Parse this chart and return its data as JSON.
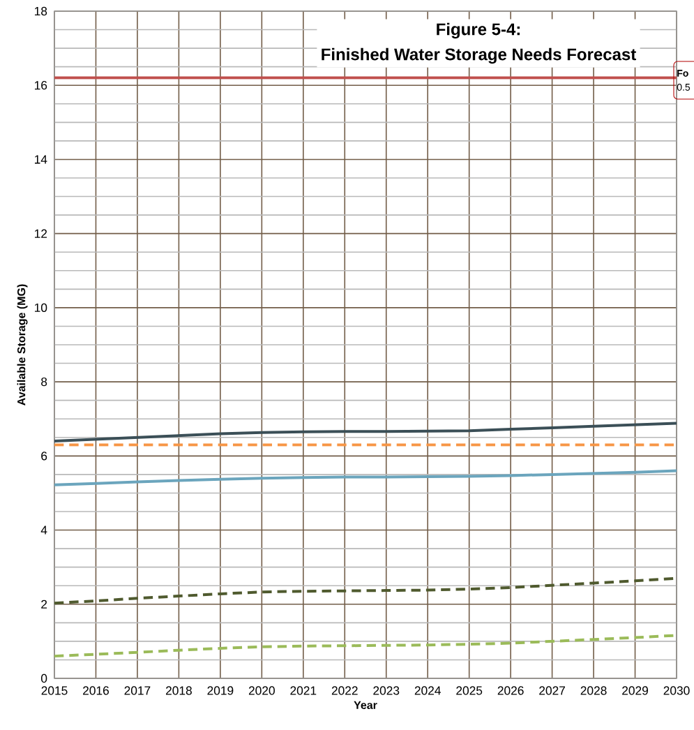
{
  "chart_data": {
    "type": "line",
    "title": "Figure 5-4:",
    "subtitle": "Finished Water Storage Needs Forecast",
    "xlabel": "Year",
    "ylabel": "Available Storage (MG)",
    "x": [
      2015,
      2016,
      2017,
      2018,
      2019,
      2020,
      2021,
      2022,
      2023,
      2024,
      2025,
      2026,
      2027,
      2028,
      2029,
      2030
    ],
    "series": [
      {
        "color": "#c0504d",
        "line_style": "solid",
        "values": [
          16.2,
          16.2,
          16.2,
          16.2,
          16.2,
          16.2,
          16.2,
          16.2,
          16.2,
          16.2,
          16.2,
          16.2,
          16.2,
          16.2,
          16.2,
          16.2
        ]
      },
      {
        "color": "#3b4f57",
        "line_style": "solid",
        "values": [
          6.4,
          6.45,
          6.5,
          6.55,
          6.6,
          6.63,
          6.65,
          6.66,
          6.66,
          6.67,
          6.68,
          6.72,
          6.76,
          6.8,
          6.84,
          6.88
        ]
      },
      {
        "color": "#f79646",
        "line_style": "dashed",
        "values": [
          6.3,
          6.3,
          6.3,
          6.3,
          6.3,
          6.3,
          6.3,
          6.3,
          6.3,
          6.3,
          6.3,
          6.3,
          6.3,
          6.3,
          6.3,
          6.3
        ]
      },
      {
        "color": "#6ba5bd",
        "line_style": "solid",
        "values": [
          5.22,
          5.26,
          5.3,
          5.34,
          5.37,
          5.4,
          5.42,
          5.43,
          5.43,
          5.44,
          5.45,
          5.47,
          5.5,
          5.53,
          5.56,
          5.6
        ]
      },
      {
        "color": "#4f5a2e",
        "line_style": "dashed",
        "values": [
          2.03,
          2.09,
          2.16,
          2.22,
          2.28,
          2.33,
          2.35,
          2.36,
          2.37,
          2.38,
          2.41,
          2.45,
          2.51,
          2.57,
          2.63,
          2.7
        ]
      },
      {
        "color": "#9bbb59",
        "line_style": "dashed",
        "values": [
          0.6,
          0.65,
          0.7,
          0.76,
          0.81,
          0.85,
          0.87,
          0.88,
          0.89,
          0.9,
          0.92,
          0.95,
          1.0,
          1.05,
          1.1,
          1.16
        ]
      }
    ],
    "annotations": [
      "Fo",
      "0.5"
    ],
    "xlim": [
      2015,
      2030
    ],
    "ylim": [
      0,
      18
    ],
    "xticks": [
      2015,
      2016,
      2017,
      2018,
      2019,
      2020,
      2021,
      2022,
      2023,
      2024,
      2025,
      2026,
      2027,
      2028,
      2029,
      2030
    ],
    "yticks": [
      0,
      2,
      4,
      6,
      8,
      10,
      12,
      14,
      16,
      18
    ],
    "grid": true,
    "marker": "none"
  }
}
